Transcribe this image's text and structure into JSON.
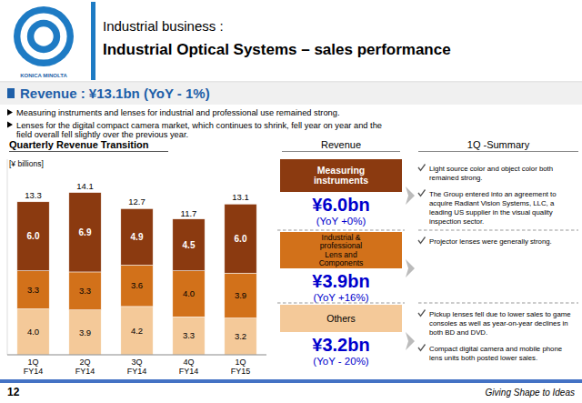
{
  "chart_data": {
    "type": "bar",
    "stacked": true,
    "title": "Quarterly Revenue Transition",
    "y_label": "[¥ billions]",
    "categories": [
      "1Q\nFY14",
      "2Q\nFY14",
      "3Q\nFY14",
      "4Q\nFY14",
      "1Q\nFY15"
    ],
    "series": [
      {
        "name": "Others",
        "color": "#F4C999",
        "values": [
          4.0,
          3.9,
          4.2,
          3.3,
          3.2
        ],
        "value_labels": [
          "4.0",
          "3.9",
          "4.2",
          "3.3",
          "3.2"
        ]
      },
      {
        "name": "Industrial &\nprofessional\nLens and\nComponents",
        "color": "#D2711A",
        "values": [
          3.3,
          3.3,
          3.6,
          4.0,
          3.9
        ],
        "value_labels": [
          "3.3",
          "3.3",
          "3.6",
          "4.0",
          "3.9"
        ]
      },
      {
        "name": "Measuring\ninstruments",
        "color": "#8B3A10",
        "values": [
          6.0,
          6.9,
          4.9,
          4.5,
          6.0
        ],
        "value_labels": [
          "6.0",
          "6.9",
          "4.9",
          "4.5",
          "6.0"
        ]
      }
    ],
    "totals": [
      13.3,
      14.1,
      12.7,
      11.7,
      13.1
    ],
    "ylim": [
      0,
      17
    ],
    "data_labels": true,
    "tick_labels": "x",
    "grid": false
  },
  "page": {
    "logo_text": "KONICA MINOLTA",
    "title_line1": "Industrial business :",
    "title_line2": "Industrial Optical Systems – sales performance",
    "revenue_header": "Revenue :   ¥13.1bn (YoY - 1%)",
    "bullets": [
      "Measuring instruments and lenses for industrial and professional use remained strong.",
      "Lenses for the digital compact camera market, which continues to shrink, fell year on year and the\nfield overall fell slightly over the previous year."
    ],
    "revenue_section_label": "Revenue",
    "summary_label": "1Q -Summary",
    "revenue_items": [
      {
        "value": "¥6.0bn",
        "yoy": "(YoY +0%)"
      },
      {
        "value": "¥3.9bn",
        "yoy": "(YoY +16%)"
      },
      {
        "value": "¥3.2bn",
        "yoy": "(YoY - 20%)"
      }
    ],
    "summary_sections": [
      [
        "Light source color and object color both\nremained strong.",
        "The Group entered into an agreement to\nacquire Radiant Vision Systems, LLC, a\nleading US supplier in the visual quality\ninspection sector."
      ],
      [
        "Projector lenses were generally strong."
      ],
      [
        "Pickup lenses fell due to lower sales to game\nconsoles as well as year-on-year declines in\nboth BD and DVD.",
        "Compact digital camera and mobile phone\nlens units both posted lower sales."
      ]
    ],
    "footer_left": "12",
    "footer_right": "Giving Shape to Ideas",
    "colors": {
      "logo": "#1E7BC4",
      "brand": "#1E5FA8",
      "revenue": "#0000CC",
      "band": "#F0F0F0",
      "footer_line": "#4472C4"
    }
  }
}
